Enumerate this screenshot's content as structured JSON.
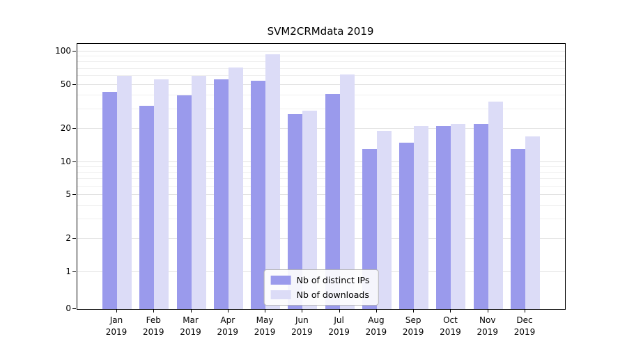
{
  "chart_data": {
    "type": "bar",
    "title": "SVM2CRMdata 2019",
    "categories": [
      "Jan",
      "Feb",
      "Mar",
      "Apr",
      "May",
      "Jun",
      "Jul",
      "Aug",
      "Sep",
      "Oct",
      "Nov",
      "Dec"
    ],
    "year_label": "2019",
    "series": [
      {
        "name": "Nb of distinct IPs",
        "color": "#9a9aec",
        "values": [
          43,
          32,
          40,
          56,
          54,
          27,
          41,
          13,
          15,
          21,
          22,
          13
        ]
      },
      {
        "name": "Nb of downloads",
        "color": "#dcdcf7",
        "values": [
          60,
          56,
          60,
          72,
          95,
          29,
          62,
          19,
          21,
          22,
          35,
          17
        ]
      }
    ],
    "yscale": "symlog",
    "yticks": [
      0,
      1,
      2,
      5,
      10,
      20,
      50,
      100
    ],
    "grid_major": [
      1,
      2,
      5,
      10,
      20,
      50,
      100
    ],
    "grid_minor": [
      3,
      4,
      6,
      7,
      8,
      9,
      30,
      40,
      60,
      70,
      80,
      90
    ],
    "ylim": [
      0,
      110
    ],
    "legend_position": "lower center",
    "background": "#ffffff"
  }
}
